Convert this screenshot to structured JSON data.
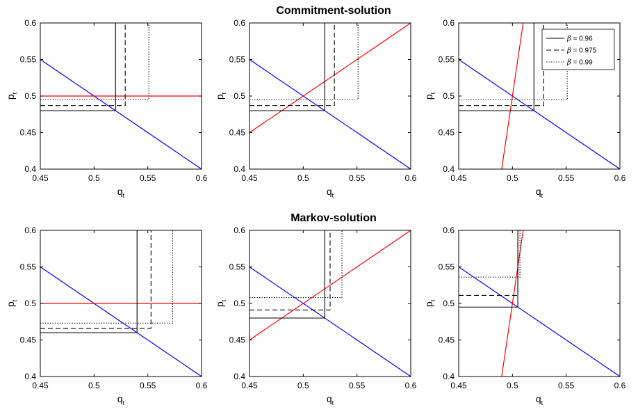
{
  "figure": {
    "row_titles": [
      "Commitment-solution",
      "Markov-solution"
    ],
    "legend": {
      "beta_symbol": "β",
      "entries": [
        {
          "label": "= 0.96",
          "style": "solid"
        },
        {
          "label": "= 0.975",
          "style": "dashed"
        },
        {
          "label": "= 0.99",
          "style": "dotted"
        }
      ]
    },
    "colors": {
      "blue": "#0000ff",
      "red": "#ff0000",
      "black": "#000000"
    }
  },
  "chart_data": [
    {
      "type": "line",
      "row": 0,
      "col": 0,
      "xlabel": "q",
      "xlabel_sub": "t",
      "ylabel": "p",
      "ylabel_sub": "t",
      "xlim": [
        0.45,
        0.6
      ],
      "ylim": [
        0.4,
        0.6
      ],
      "xticks": [
        "0.45",
        "0.5",
        "0.55",
        "0.6"
      ],
      "yticks": [
        "0.4",
        "0.45",
        "0.5",
        "0.55",
        "0.6"
      ],
      "series": [
        {
          "color": "blue",
          "style": "solid",
          "x": [
            0.45,
            0.6
          ],
          "y": [
            0.55,
            0.4
          ]
        },
        {
          "color": "red",
          "style": "solid",
          "x": [
            0.45,
            0.6
          ],
          "y": [
            0.5,
            0.5
          ]
        },
        {
          "color": "black",
          "style": "solid",
          "x": [
            0.45,
            0.52,
            0.52
          ],
          "y": [
            0.48,
            0.48,
            0.6
          ]
        },
        {
          "color": "black",
          "style": "dashed",
          "x": [
            0.45,
            0.529,
            0.529
          ],
          "y": [
            0.487,
            0.487,
            0.6
          ]
        },
        {
          "color": "black",
          "style": "dotted",
          "x": [
            0.45,
            0.551,
            0.551
          ],
          "y": [
            0.495,
            0.495,
            0.6
          ]
        }
      ]
    },
    {
      "type": "line",
      "row": 0,
      "col": 1,
      "xlabel": "q",
      "xlabel_sub": "t",
      "ylabel": "p",
      "ylabel_sub": "t",
      "xlim": [
        0.45,
        0.6
      ],
      "ylim": [
        0.4,
        0.6
      ],
      "xticks": [
        "0.45",
        "0.5",
        "0.55",
        "0.6"
      ],
      "yticks": [
        "0.4",
        "0.45",
        "0.5",
        "0.55",
        "0.6"
      ],
      "series": [
        {
          "color": "blue",
          "style": "solid",
          "x": [
            0.45,
            0.6
          ],
          "y": [
            0.55,
            0.4
          ]
        },
        {
          "color": "red",
          "style": "solid",
          "x": [
            0.45,
            0.6
          ],
          "y": [
            0.45,
            0.6
          ]
        },
        {
          "color": "black",
          "style": "solid",
          "x": [
            0.45,
            0.52,
            0.52
          ],
          "y": [
            0.48,
            0.48,
            0.6
          ]
        },
        {
          "color": "black",
          "style": "dashed",
          "x": [
            0.45,
            0.529,
            0.529
          ],
          "y": [
            0.487,
            0.487,
            0.6
          ]
        },
        {
          "color": "black",
          "style": "dotted",
          "x": [
            0.45,
            0.551,
            0.551
          ],
          "y": [
            0.495,
            0.495,
            0.6
          ]
        }
      ]
    },
    {
      "type": "line",
      "row": 0,
      "col": 2,
      "xlabel": "q",
      "xlabel_sub": "t",
      "ylabel": "p",
      "ylabel_sub": "t",
      "xlim": [
        0.45,
        0.6
      ],
      "ylim": [
        0.4,
        0.6
      ],
      "xticks": [
        "0.45",
        "0.5",
        "0.55",
        "0.6"
      ],
      "yticks": [
        "0.4",
        "0.45",
        "0.5",
        "0.55",
        "0.6"
      ],
      "legend_position": "top-right",
      "series": [
        {
          "color": "blue",
          "style": "solid",
          "x": [
            0.45,
            0.6
          ],
          "y": [
            0.55,
            0.4
          ]
        },
        {
          "color": "red",
          "style": "solid",
          "x": [
            0.49,
            0.51
          ],
          "y": [
            0.4,
            0.6
          ]
        },
        {
          "color": "black",
          "style": "solid",
          "x": [
            0.45,
            0.52,
            0.52
          ],
          "y": [
            0.48,
            0.48,
            0.6
          ]
        },
        {
          "color": "black",
          "style": "dashed",
          "x": [
            0.45,
            0.529,
            0.529
          ],
          "y": [
            0.487,
            0.487,
            0.6
          ]
        },
        {
          "color": "black",
          "style": "dotted",
          "x": [
            0.45,
            0.551,
            0.551
          ],
          "y": [
            0.495,
            0.495,
            0.6
          ]
        }
      ]
    },
    {
      "type": "line",
      "row": 1,
      "col": 0,
      "xlabel": "q",
      "xlabel_sub": "t",
      "ylabel": "p",
      "ylabel_sub": "t",
      "xlim": [
        0.45,
        0.6
      ],
      "ylim": [
        0.4,
        0.6
      ],
      "xticks": [
        "0.45",
        "0.5",
        "0.55",
        "0.6"
      ],
      "yticks": [
        "0.4",
        "0.45",
        "0.5",
        "0.55",
        "0.6"
      ],
      "series": [
        {
          "color": "blue",
          "style": "solid",
          "x": [
            0.45,
            0.6
          ],
          "y": [
            0.55,
            0.4
          ]
        },
        {
          "color": "red",
          "style": "solid",
          "x": [
            0.45,
            0.6
          ],
          "y": [
            0.5,
            0.5
          ]
        },
        {
          "color": "black",
          "style": "solid",
          "x": [
            0.45,
            0.54,
            0.54
          ],
          "y": [
            0.46,
            0.46,
            0.6
          ]
        },
        {
          "color": "black",
          "style": "dashed",
          "x": [
            0.45,
            0.553,
            0.553
          ],
          "y": [
            0.466,
            0.466,
            0.6
          ]
        },
        {
          "color": "black",
          "style": "dotted",
          "x": [
            0.45,
            0.573,
            0.573
          ],
          "y": [
            0.473,
            0.473,
            0.6
          ]
        }
      ]
    },
    {
      "type": "line",
      "row": 1,
      "col": 1,
      "xlabel": "q",
      "xlabel_sub": "t",
      "ylabel": "p",
      "ylabel_sub": "t",
      "xlim": [
        0.45,
        0.6
      ],
      "ylim": [
        0.4,
        0.6
      ],
      "xticks": [
        "0.45",
        "0.5",
        "0.55",
        "0.6"
      ],
      "yticks": [
        "0.4",
        "0.45",
        "0.5",
        "0.55",
        "0.6"
      ],
      "series": [
        {
          "color": "blue",
          "style": "solid",
          "x": [
            0.45,
            0.6
          ],
          "y": [
            0.55,
            0.4
          ]
        },
        {
          "color": "red",
          "style": "solid",
          "x": [
            0.45,
            0.6
          ],
          "y": [
            0.45,
            0.6
          ]
        },
        {
          "color": "black",
          "style": "solid",
          "x": [
            0.45,
            0.52,
            0.52
          ],
          "y": [
            0.48,
            0.48,
            0.6
          ]
        },
        {
          "color": "black",
          "style": "dashed",
          "x": [
            0.45,
            0.525,
            0.525
          ],
          "y": [
            0.491,
            0.491,
            0.6
          ]
        },
        {
          "color": "black",
          "style": "dotted",
          "x": [
            0.45,
            0.536,
            0.536
          ],
          "y": [
            0.508,
            0.508,
            0.6
          ]
        }
      ]
    },
    {
      "type": "line",
      "row": 1,
      "col": 2,
      "xlabel": "q",
      "xlabel_sub": "t",
      "ylabel": "p",
      "ylabel_sub": "t",
      "xlim": [
        0.45,
        0.6
      ],
      "ylim": [
        0.4,
        0.6
      ],
      "xticks": [
        "0.45",
        "0.5",
        "0.55",
        "0.6"
      ],
      "yticks": [
        "0.4",
        "0.45",
        "0.5",
        "0.55",
        "0.6"
      ],
      "series": [
        {
          "color": "blue",
          "style": "solid",
          "x": [
            0.45,
            0.6
          ],
          "y": [
            0.55,
            0.4
          ]
        },
        {
          "color": "red",
          "style": "solid",
          "x": [
            0.49,
            0.51
          ],
          "y": [
            0.4,
            0.6
          ]
        },
        {
          "color": "black",
          "style": "solid",
          "x": [
            0.45,
            0.505,
            0.505
          ],
          "y": [
            0.495,
            0.495,
            0.6
          ]
        },
        {
          "color": "black",
          "style": "dashed",
          "x": [
            0.45,
            0.505,
            0.505
          ],
          "y": [
            0.511,
            0.511,
            0.6
          ]
        },
        {
          "color": "black",
          "style": "dotted",
          "x": [
            0.45,
            0.507,
            0.507
          ],
          "y": [
            0.536,
            0.536,
            0.6
          ]
        }
      ]
    }
  ]
}
